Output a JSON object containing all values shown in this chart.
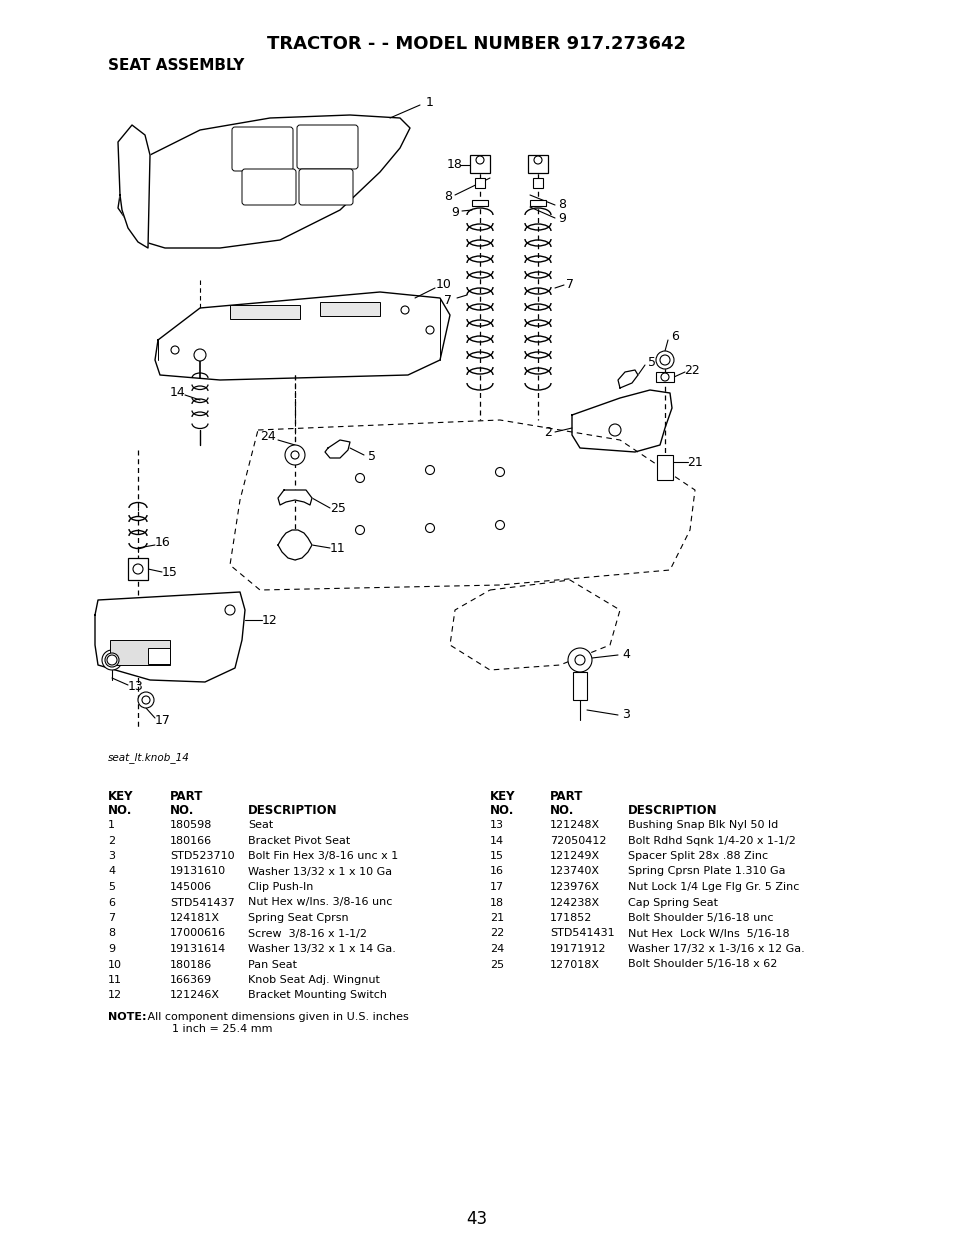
{
  "title": "TRACTOR - - MODEL NUMBER 917.273642",
  "subtitle": "SEAT ASSEMBLY",
  "diagram_label": "seat_lt.knob_14",
  "page_number": "43",
  "background_color": "#ffffff",
  "text_color": "#000000",
  "left_parts": [
    [
      "1",
      "180598",
      "Seat"
    ],
    [
      "2",
      "180166",
      "Bracket Pivot Seat"
    ],
    [
      "3",
      "STD523710",
      "Bolt Fin Hex 3/8-16 unc x 1"
    ],
    [
      "4",
      "19131610",
      "Washer 13/32 x 1 x 10 Ga"
    ],
    [
      "5",
      "145006",
      "Clip Push-In"
    ],
    [
      "6",
      "STD541437",
      "Nut Hex w/Ins. 3/8-16 unc"
    ],
    [
      "7",
      "124181X",
      "Spring Seat Cprsn"
    ],
    [
      "8",
      "17000616",
      "Screw  3/8-16 x 1-1/2"
    ],
    [
      "9",
      "19131614",
      "Washer 13/32 x 1 x 14 Ga."
    ],
    [
      "10",
      "180186",
      "Pan Seat"
    ],
    [
      "11",
      "166369",
      "Knob Seat Adj. Wingnut"
    ],
    [
      "12",
      "121246X",
      "Bracket Mounting Switch"
    ]
  ],
  "right_parts": [
    [
      "13",
      "121248X",
      "Bushing Snap Blk Nyl 50 ld"
    ],
    [
      "14",
      "72050412",
      "Bolt Rdhd Sqnk 1/4-20 x 1-1/2"
    ],
    [
      "15",
      "121249X",
      "Spacer Split 28x .88 Zinc"
    ],
    [
      "16",
      "123740X",
      "Spring Cprsn Plate 1.310 Ga"
    ],
    [
      "17",
      "123976X",
      "Nut Lock 1/4 Lge Flg Gr. 5 Zinc"
    ],
    [
      "18",
      "124238X",
      "Cap Spring Seat"
    ],
    [
      "21",
      "171852",
      "Bolt Shoulder 5/16-18 unc"
    ],
    [
      "22",
      "STD541431",
      "Nut Hex  Lock W/Ins  5/16-18"
    ],
    [
      "24",
      "19171912",
      "Washer 17/32 x 1-3/16 x 12 Ga."
    ],
    [
      "25",
      "127018X",
      "Bolt Shoulder 5/16-18 x 62"
    ]
  ],
  "note_bold": "NOTE:",
  "note_text": " All component dimensions given in U.S. inches\n        1 inch = 25.4 mm"
}
